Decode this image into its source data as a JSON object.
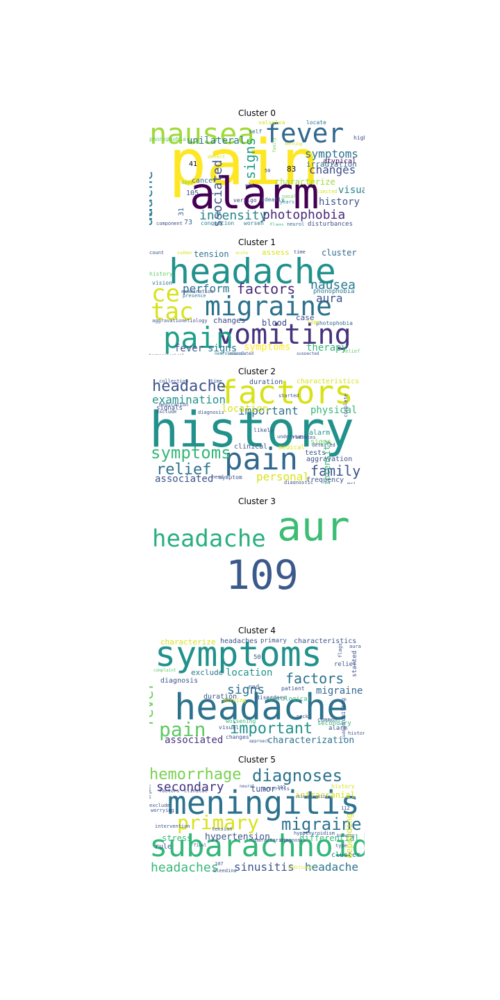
{
  "figure": {
    "clusters": [
      {
        "title": "Cluster 0",
        "words": [
          {
            "text": "pain",
            "color": "#fde725"
          },
          {
            "text": "alarm",
            "color": "#440154"
          },
          {
            "text": "nausea",
            "color": "#a0da39"
          },
          {
            "text": "fever",
            "color": "#31688e"
          },
          {
            "text": "vomiting",
            "color": "#4ac16d"
          },
          {
            "text": "headache",
            "color": "#2a788e"
          },
          {
            "text": "associated",
            "color": "#3b528b"
          },
          {
            "text": "signs",
            "color": "#1f9e89"
          },
          {
            "text": "photophobia",
            "color": "#482878"
          },
          {
            "text": "intensity",
            "color": "#26828e"
          },
          {
            "text": "symptoms",
            "color": "#2c728e"
          },
          {
            "text": "changes",
            "color": "#3e4a89"
          },
          {
            "text": "unilateral",
            "color": "#2a788e"
          },
          {
            "text": "visual",
            "color": "#26828e"
          },
          {
            "text": "history",
            "color": "#3b528b"
          },
          {
            "text": "characterize",
            "color": "#a0da39"
          },
          {
            "text": "irradiation",
            "color": "#2c728e"
          },
          {
            "text": "atypical",
            "color": "#440154"
          },
          {
            "text": "cancer",
            "color": "#31688e"
          },
          {
            "text": "vertigo",
            "color": "#433e85"
          },
          {
            "text": "congestion",
            "color": "#2a788e"
          },
          {
            "text": "worsen",
            "color": "#2c728e"
          },
          {
            "text": "flags",
            "color": "#35b779"
          },
          {
            "text": "neurol",
            "color": "#31688e"
          },
          {
            "text": "disturbances",
            "color": "#3e4a89"
          },
          {
            "text": "component",
            "color": "#3e4a89"
          },
          {
            "text": "phonophobia",
            "color": "#5ec962"
          },
          {
            "text": "allergies",
            "color": "#7ad151"
          },
          {
            "text": "ideally",
            "color": "#31688e"
          },
          {
            "text": "years",
            "color": "#1f9e89"
          },
          {
            "text": "nasal",
            "color": "#6ccd5a"
          },
          {
            "text": "limited",
            "color": "#d2e21b"
          },
          {
            "text": "high",
            "color": "#3e4a89"
          },
          {
            "text": "locate",
            "color": "#2a788e"
          },
          {
            "text": "self",
            "color": "#31688e"
          },
          {
            "text": "family",
            "color": "#6ccd5a"
          },
          {
            "text": "morning",
            "color": "#d2e21b"
          },
          {
            "text": "detect",
            "color": "#d2e21b"
          },
          {
            "text": "days",
            "color": "#7ad151"
          },
          {
            "text": "old",
            "color": "#3e4a89"
          },
          {
            "text": "41",
            "color": "#000000"
          },
          {
            "text": "83",
            "color": "#000000"
          },
          {
            "text": "105",
            "color": "#3b528b"
          },
          {
            "text": "31",
            "color": "#31688e"
          },
          {
            "text": "73",
            "color": "#31688e"
          },
          {
            "text": "76",
            "color": "#2a788e"
          },
          {
            "text": "50",
            "color": "#3e4a89"
          },
          {
            "text": "valsalva",
            "color": "#d2e21b"
          }
        ]
      },
      {
        "title": "Cluster 1",
        "words": [
          {
            "text": "headache",
            "color": "#21918c"
          },
          {
            "text": "migraine",
            "color": "#2c728e"
          },
          {
            "text": "vomiting",
            "color": "#46327e"
          },
          {
            "text": "pain",
            "color": "#1f9e89"
          },
          {
            "text": "tac",
            "color": "#d8e219"
          },
          {
            "text": "ce",
            "color": "#d8e219"
          },
          {
            "text": "factors",
            "color": "#482878"
          },
          {
            "text": "nausea",
            "color": "#2a788e"
          },
          {
            "text": "perform",
            "color": "#2c728e"
          },
          {
            "text": "aura",
            "color": "#3b528b"
          },
          {
            "text": "tension",
            "color": "#2c728e"
          },
          {
            "text": "assess",
            "color": "#d8e219"
          },
          {
            "text": "cluster",
            "color": "#31688e"
          },
          {
            "text": "symptoms",
            "color": "#fde725"
          },
          {
            "text": "therapy",
            "color": "#35b779"
          },
          {
            "text": "fever",
            "color": "#3b528b"
          },
          {
            "text": "signs",
            "color": "#2c728e"
          },
          {
            "text": "blood",
            "color": "#3e4a89"
          },
          {
            "text": "case",
            "color": "#3e4a89"
          },
          {
            "text": "changes",
            "color": "#3e4a89"
          },
          {
            "text": "photophobia",
            "color": "#31688e"
          },
          {
            "text": "phonophobia",
            "color": "#2a788e"
          },
          {
            "text": "vision",
            "color": "#2a788e"
          },
          {
            "text": "etiology",
            "color": "#3e4a89"
          },
          {
            "text": "aggravation",
            "color": "#3b528b"
          },
          {
            "text": "presence",
            "color": "#2a788e"
          },
          {
            "text": "examination",
            "color": "#3e4a89"
          },
          {
            "text": "history",
            "color": "#5ec962"
          },
          {
            "text": "count",
            "color": "#3b528b"
          },
          {
            "text": "time",
            "color": "#3e4a89"
          },
          {
            "text": "type",
            "color": "#d8e219"
          },
          {
            "text": "relief",
            "color": "#5ec962"
          },
          {
            "text": "associated",
            "color": "#3e4a89"
          },
          {
            "text": "accompanied",
            "color": "#5ec962"
          },
          {
            "text": "pharmacological",
            "color": "#3e4a89"
          },
          {
            "text": "neurological",
            "color": "#2a788e"
          },
          {
            "text": "suspected",
            "color": "#3b528b"
          },
          {
            "text": "sudden",
            "color": "#d8e219"
          },
          {
            "text": "acute",
            "color": "#d8e219"
          }
        ]
      },
      {
        "title": "Cluster 2",
        "words": [
          {
            "text": "history",
            "color": "#21918c"
          },
          {
            "text": "factors",
            "color": "#d8e219"
          },
          {
            "text": "pain",
            "color": "#31688e"
          },
          {
            "text": "symptoms",
            "color": "#35b779"
          },
          {
            "text": "headache",
            "color": "#3b528b"
          },
          {
            "text": "examination",
            "color": "#21918c"
          },
          {
            "text": "relief",
            "color": "#2c728e"
          },
          {
            "text": "family",
            "color": "#3b528b"
          },
          {
            "text": "personal",
            "color": "#d8e219"
          },
          {
            "text": "associated",
            "color": "#3b528b"
          },
          {
            "text": "important",
            "color": "#2c728e"
          },
          {
            "text": "location",
            "color": "#d8e219"
          },
          {
            "text": "physical",
            "color": "#35b779"
          },
          {
            "text": "intensity",
            "color": "#35b779"
          },
          {
            "text": "duration",
            "color": "#3b528b"
          },
          {
            "text": "characteristics",
            "color": "#d8e219"
          },
          {
            "text": "signals",
            "color": "#3b528b"
          },
          {
            "text": "aggravation",
            "color": "#3b528b"
          },
          {
            "text": "alarm",
            "color": "#21918c"
          },
          {
            "text": "signs",
            "color": "#6ccd5a"
          },
          {
            "text": "tests",
            "color": "#3b528b"
          },
          {
            "text": "clinical",
            "color": "#3b528b"
          },
          {
            "text": "medical",
            "color": "#d8e219"
          },
          {
            "text": "frequency",
            "color": "#3b528b"
          },
          {
            "text": "collection",
            "color": "#3b528b"
          },
          {
            "text": "medication",
            "color": "#3b528b"
          },
          {
            "text": "exclude",
            "color": "#3b528b"
          },
          {
            "text": "diagnosis",
            "color": "#3b528b"
          },
          {
            "text": "likely",
            "color": "#3b528b"
          },
          {
            "text": "understand",
            "color": "#3b528b"
          },
          {
            "text": "symptom",
            "color": "#3b528b"
          },
          {
            "text": "diagnostic",
            "color": "#3b528b"
          },
          {
            "text": "time",
            "color": "#3b528b"
          },
          {
            "text": "complete",
            "color": "#3b528b"
          },
          {
            "text": "started",
            "color": "#3b528b"
          },
          {
            "text": "radiates",
            "color": "#3b528b"
          },
          {
            "text": "need",
            "color": "#3b528b"
          },
          {
            "text": "detailed",
            "color": "#3b528b"
          },
          {
            "text": "mri",
            "color": "#3b528b"
          }
        ]
      },
      {
        "title": "Cluster 3",
        "words": [
          {
            "text": "aur",
            "color": "#3dbc74"
          },
          {
            "text": "headache",
            "color": "#29af7f"
          },
          {
            "text": "109",
            "color": "#3b5a8b"
          }
        ]
      },
      {
        "title": "Cluster 4",
        "words": [
          {
            "text": "symptoms",
            "color": "#21918c"
          },
          {
            "text": "headache",
            "color": "#2c728e"
          },
          {
            "text": "pain",
            "color": "#5ec962"
          },
          {
            "text": "important",
            "color": "#21918c"
          },
          {
            "text": "factors",
            "color": "#2c728e"
          },
          {
            "text": "signs",
            "color": "#2c728e"
          },
          {
            "text": "fever",
            "color": "#6ccd5a"
          },
          {
            "text": "location",
            "color": "#21918c"
          },
          {
            "text": "migraine",
            "color": "#31688e"
          },
          {
            "text": "associated",
            "color": "#46327e"
          },
          {
            "text": "characterization",
            "color": "#2c728e"
          },
          {
            "text": "characterize",
            "color": "#d8e219"
          },
          {
            "text": "headaches",
            "color": "#3b528b"
          },
          {
            "text": "primary",
            "color": "#3b528b"
          },
          {
            "text": "characteristics",
            "color": "#3b528b"
          },
          {
            "text": "exclude",
            "color": "#2a788e"
          },
          {
            "text": "diagnosis",
            "color": "#3b528b"
          },
          {
            "text": "duration",
            "color": "#3b528b"
          },
          {
            "text": "red",
            "color": "#3b528b"
          },
          {
            "text": "patient",
            "color": "#3b528b"
          },
          {
            "text": "relief",
            "color": "#3b528b"
          },
          {
            "text": "intensity",
            "color": "#3b528b"
          },
          {
            "text": "neurological",
            "color": "#35b779"
          },
          {
            "text": "secondary",
            "color": "#35b779"
          },
          {
            "text": "alarm",
            "color": "#3b528b"
          },
          {
            "text": "common",
            "color": "#3b528b"
          },
          {
            "text": "worsening",
            "color": "#35b779"
          },
          {
            "text": "visual",
            "color": "#3b528b"
          },
          {
            "text": "changes",
            "color": "#3b528b"
          },
          {
            "text": "morning",
            "color": "#d8e219"
          },
          {
            "text": "disorders",
            "color": "#3b528b"
          },
          {
            "text": "irradiation",
            "color": "#5ec962"
          },
          {
            "text": "vomiting",
            "color": "#3b528b"
          },
          {
            "text": "started",
            "color": "#3b528b"
          },
          {
            "text": "flags",
            "color": "#3b528b"
          },
          {
            "text": "history",
            "color": "#3b528b"
          },
          {
            "text": "50",
            "color": "#3b528b"
          },
          {
            "text": "aura",
            "color": "#3b528b"
          },
          {
            "text": "neck",
            "color": "#3b528b"
          },
          {
            "text": "sudden",
            "color": "#3b528b"
          },
          {
            "text": "complaint",
            "color": "#5ec962"
          },
          {
            "text": "approach",
            "color": "#3b528b"
          }
        ]
      },
      {
        "title": "Cluster 5",
        "words": [
          {
            "text": "meningitis",
            "color": "#2c728e"
          },
          {
            "text": "subarachnoid",
            "color": "#35b779"
          },
          {
            "text": "hemorrhage",
            "color": "#7ad151"
          },
          {
            "text": "diagnoses",
            "color": "#2c728e"
          },
          {
            "text": "primary",
            "color": "#d8e219"
          },
          {
            "text": "migraine",
            "color": "#2c728e"
          },
          {
            "text": "secondary",
            "color": "#46327e"
          },
          {
            "text": "headaches",
            "color": "#35b779"
          },
          {
            "text": "sinusitis",
            "color": "#3b528b"
          },
          {
            "text": "headache",
            "color": "#2c728e"
          },
          {
            "text": "hypertension",
            "color": "#3b528b"
          },
          {
            "text": "intracranial",
            "color": "#d8e219"
          },
          {
            "text": "tumor",
            "color": "#3b528b"
          },
          {
            "text": "stress",
            "color": "#35b779"
          },
          {
            "text": "differential",
            "color": "#35b779"
          },
          {
            "text": "cluster",
            "color": "#2c728e"
          },
          {
            "text": "depending",
            "color": "#d8e219"
          },
          {
            "text": "rule",
            "color": "#3b528b"
          },
          {
            "text": "arteritis",
            "color": "#3b528b"
          },
          {
            "text": "tension",
            "color": "#3b528b"
          },
          {
            "text": "diagnosis",
            "color": "#3b528b"
          },
          {
            "text": "factors",
            "color": "#3b528b"
          },
          {
            "text": "clinical",
            "color": "#3b528b"
          },
          {
            "text": "exclude",
            "color": "#3b528b"
          },
          {
            "text": "worrying",
            "color": "#3b528b"
          },
          {
            "text": "intervention",
            "color": "#3b528b"
          },
          {
            "text": "characterize",
            "color": "#3b528b"
          },
          {
            "text": "type",
            "color": "#3b528b"
          },
          {
            "text": "bleeding",
            "color": "#3b528b"
          },
          {
            "text": "final",
            "color": "#3b528b"
          },
          {
            "text": "urgent",
            "color": "#3b528b"
          },
          {
            "text": "rhinosinusitis",
            "color": "#3b528b"
          },
          {
            "text": "hypothyroidism",
            "color": "#3b528b"
          },
          {
            "text": "history",
            "color": "#d8e219"
          },
          {
            "text": "103",
            "color": "#3b528b"
          },
          {
            "text": "107",
            "color": "#3b528b"
          },
          {
            "text": "112",
            "color": "#3b528b"
          },
          {
            "text": "neural",
            "color": "#3b528b"
          },
          {
            "text": "knowing",
            "color": "#3b528b"
          },
          {
            "text": "additional",
            "color": "#d8e219"
          }
        ]
      }
    ]
  }
}
